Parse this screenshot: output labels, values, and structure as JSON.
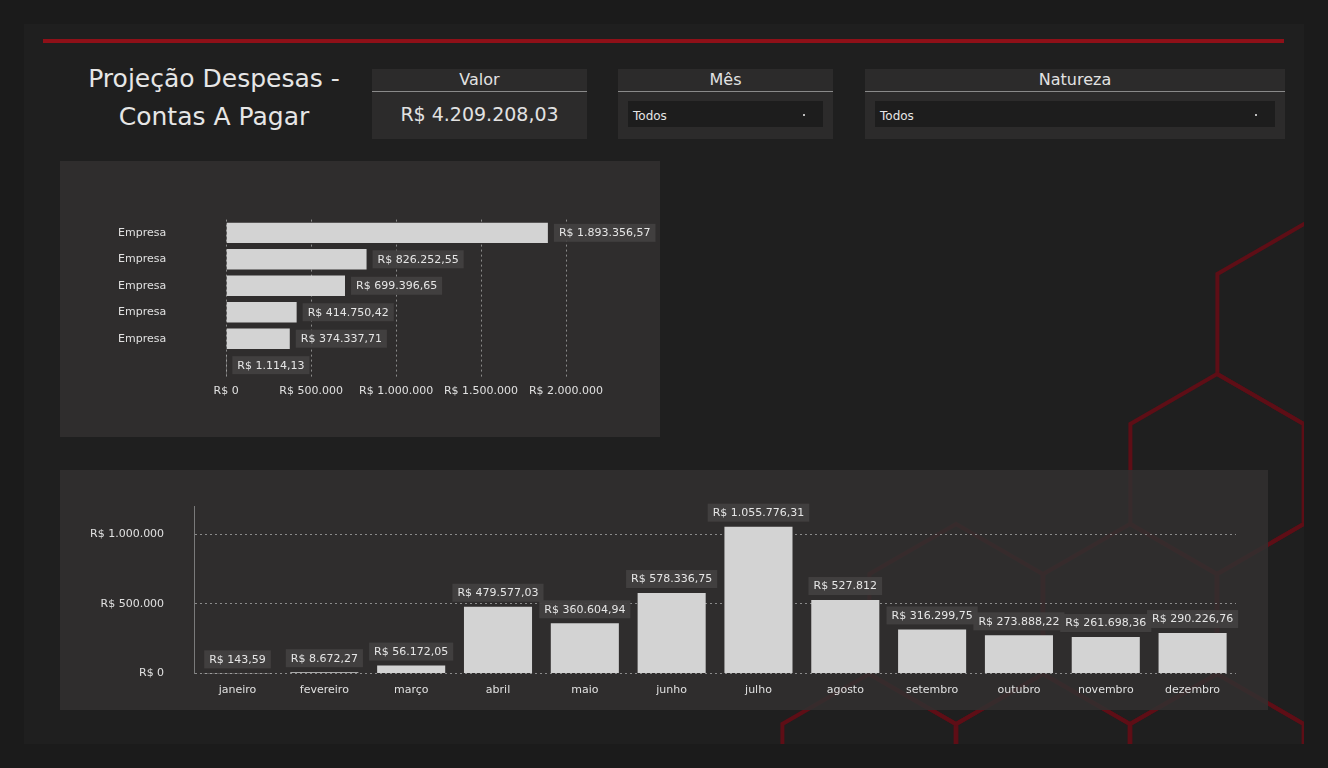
{
  "header": {
    "title": "Projeção Despesas - Contas A Pagar",
    "kpi": {
      "label": "Valor",
      "value": "R$ 4.209.208,03"
    },
    "filters": [
      {
        "label": "Mês",
        "selected": "Todos"
      },
      {
        "label": "Natureza",
        "selected": "Todos"
      }
    ]
  },
  "chart_data": [
    {
      "type": "bar",
      "orientation": "horizontal",
      "categories": [
        "Empresa",
        "Empresa",
        "Empresa",
        "Empresa",
        "Empresa",
        null
      ],
      "values": [
        1893356.57,
        826252.55,
        699396.65,
        414750.42,
        374337.71,
        1114.13
      ],
      "value_labels": [
        "R$ 1.893.356,57",
        "R$ 826.252,55",
        "R$ 699.396,65",
        "R$ 414.750,42",
        "R$ 374.337,71",
        "R$ 1.114,13"
      ],
      "color": "#d3d3d3",
      "xlim": [
        0,
        2000000
      ],
      "xticks": [
        {
          "value": 0,
          "label": "R$ 0"
        },
        {
          "value": 500000,
          "label": "R$ 500.000"
        },
        {
          "value": 1000000,
          "label": "R$ 1.000.000"
        },
        {
          "value": 1500000,
          "label": "R$ 1.500.000"
        },
        {
          "value": 2000000,
          "label": "R$ 2.000.000"
        }
      ],
      "grid": true,
      "data_labels": true
    },
    {
      "type": "bar",
      "categories": [
        "janeiro",
        "fevereiro",
        "março",
        "abril",
        "maio",
        "junho",
        "julho",
        "agosto",
        "setembro",
        "outubro",
        "novembro",
        "dezembro"
      ],
      "values": [
        143.59,
        8672.27,
        56172.05,
        479577.03,
        360604.94,
        578336.75,
        1055776.31,
        527812,
        316299.75,
        273888.22,
        261698.36,
        290226.76
      ],
      "value_labels": [
        "R$ 143,59",
        "R$ 8.672,27",
        "R$ 56.172,05",
        "R$ 479.577,03",
        "R$ 360.604,94",
        "R$ 578.336,75",
        "R$ 1.055.776,31",
        "R$ 527.812",
        "R$ 316.299,75",
        "R$ 273.888,22",
        "R$ 261.698,36",
        "R$ 290.226,76"
      ],
      "color": "#d3d3d3",
      "ylim": [
        0,
        1200000
      ],
      "yticks": [
        {
          "value": 0,
          "label": "R$ 0"
        },
        {
          "value": 500000,
          "label": "R$ 500.000"
        },
        {
          "value": 1000000,
          "label": "R$ 1.000.000"
        }
      ],
      "grid": true,
      "data_labels": true
    }
  ]
}
